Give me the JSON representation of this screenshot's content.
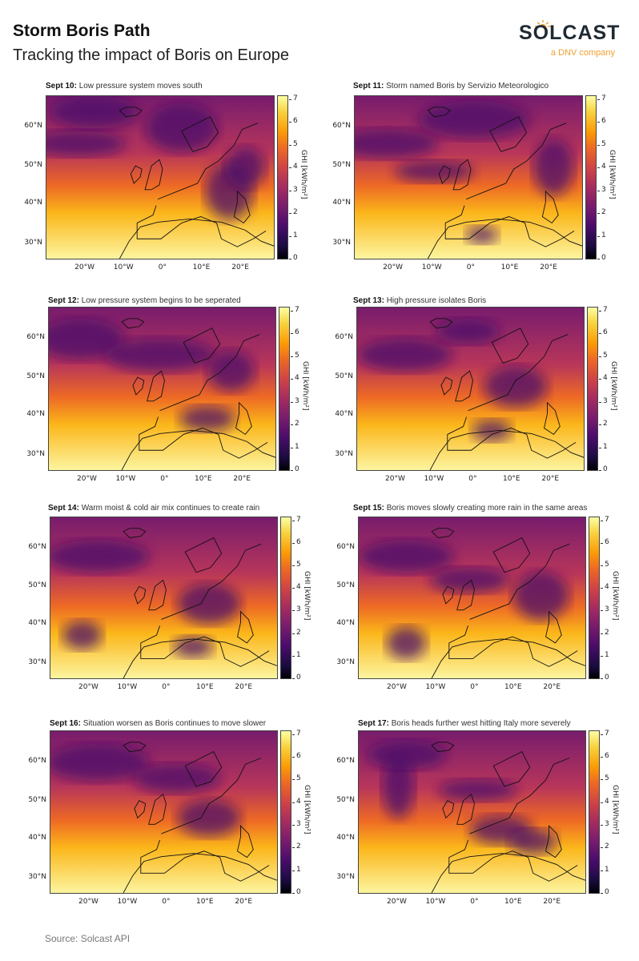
{
  "header": {
    "title": "Storm Boris Path",
    "subtitle": "Tracking the impact of Boris on Europe"
  },
  "logo": {
    "wordmark": "SOLCAST",
    "tagline": "a DNV company",
    "accent_color": "#f0a030"
  },
  "footer": {
    "source": "Source: Solcast API"
  },
  "axes": {
    "lat_ticks": [
      "60°N",
      "50°N",
      "40°N",
      "30°N"
    ],
    "lon_ticks": [
      "20°W",
      "10°W",
      "0°",
      "10°E",
      "20°E"
    ],
    "colorbar_ticks": [
      "7",
      "6",
      "5",
      "4",
      "3",
      "2",
      "1",
      "0"
    ],
    "colorbar_label": "GHI [kWh/m²]"
  },
  "panels": [
    {
      "date": "Sept 10:",
      "caption": "Low pressure system moves south"
    },
    {
      "date": "Sept 11:",
      "caption": "Storm named Boris by Servizio Meteorologico"
    },
    {
      "date": "Sept 12:",
      "caption": "Low pressure system begins to be seperated"
    },
    {
      "date": "Sept 13:",
      "caption": "High pressure isolates Boris"
    },
    {
      "date": "Sept 14:",
      "caption": "Warm moist & cold air mix continues to create rain"
    },
    {
      "date": "Sept 15:",
      "caption": "Boris moves slowly creating more rain in the same areas"
    },
    {
      "date": "Sept 16:",
      "caption": "Situation worsen as Boris continues to move slower"
    },
    {
      "date": "Sept 17:",
      "caption": "Boris heads further west hitting Italy more severely"
    }
  ],
  "chart_data": {
    "type": "heatmap",
    "title": "Storm Boris Path",
    "subtitle": "Tracking the impact of Boris on Europe",
    "colormap": "inferno",
    "variable": "GHI",
    "units": "kWh/m²",
    "colorbar_range": [
      0,
      7.2
    ],
    "colorbar_ticks": [
      0,
      1,
      2,
      3,
      4,
      5,
      6,
      7
    ],
    "x_ticks": [
      "20°W",
      "10°W",
      "0°",
      "10°E",
      "20°E"
    ],
    "y_ticks": [
      "30°N",
      "40°N",
      "50°N",
      "60°N"
    ],
    "extent": {
      "lon": [
        -30,
        29
      ],
      "lat": [
        26,
        67
      ]
    },
    "grid": false,
    "layout": "4 rows x 2 columns",
    "panels": [
      {
        "date": "Sept 10",
        "caption": "Low pressure system moves south"
      },
      {
        "date": "Sept 11",
        "caption": "Storm named Boris by Servizio Meteorologico"
      },
      {
        "date": "Sept 12",
        "caption": "Low pressure system begins to be seperated"
      },
      {
        "date": "Sept 13",
        "caption": "High pressure isolates Boris"
      },
      {
        "date": "Sept 14",
        "caption": "Warm moist & cold air mix continues to create rain"
      },
      {
        "date": "Sept 15",
        "caption": "Boris moves slowly creating more rain in the same areas"
      },
      {
        "date": "Sept 16",
        "caption": "Situation worsen as Boris continues to move slower"
      },
      {
        "date": "Sept 17",
        "caption": "Boris heads further west hitting Italy more severely"
      }
    ],
    "source": "Source: Solcast API"
  }
}
